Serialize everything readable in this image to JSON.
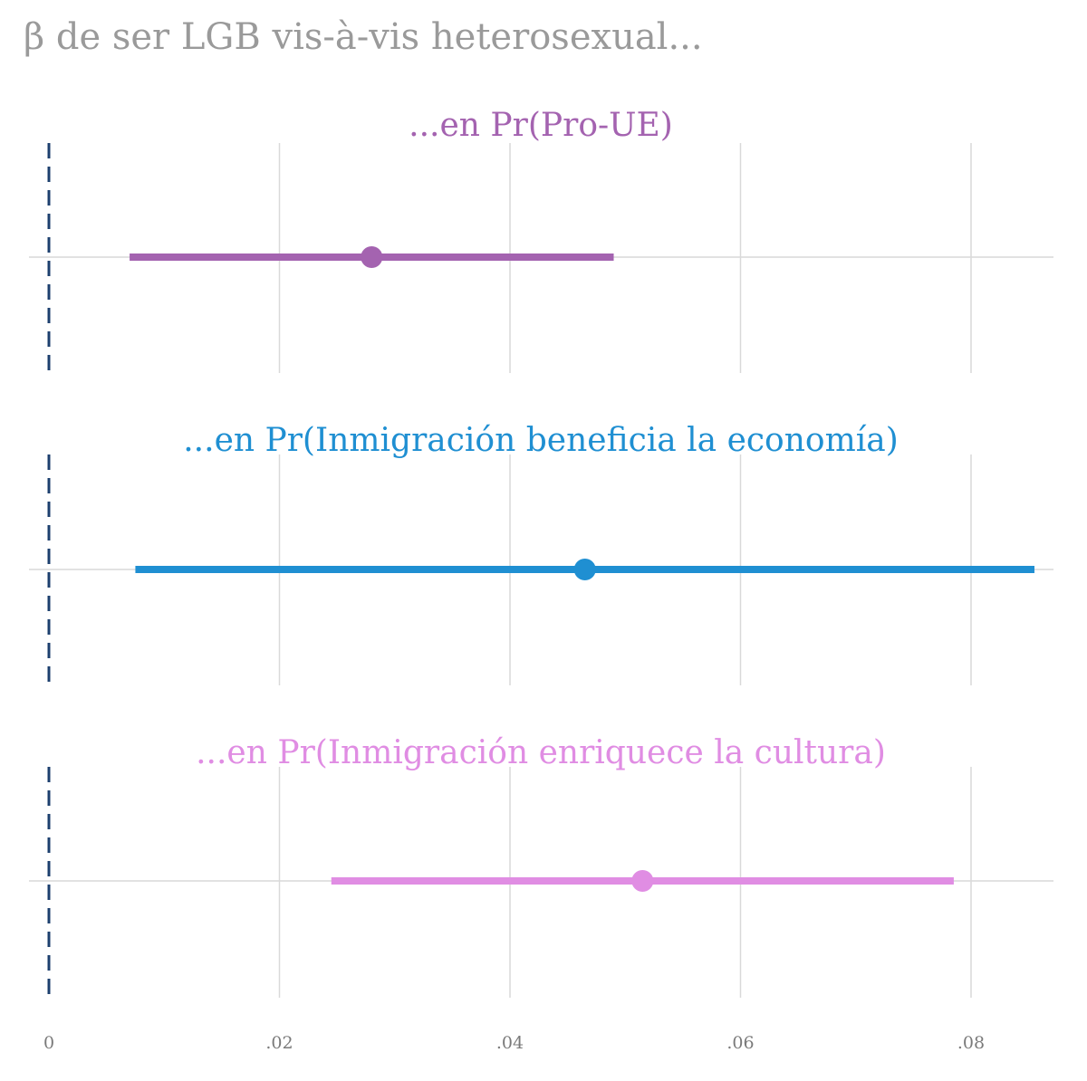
{
  "chart_data": {
    "type": "scatter",
    "subtype": "coefficient-plot-with-confidence-intervals",
    "title": "β de ser LGB vis-à-vis heterosexual...",
    "xlim": [
      0,
      0.087
    ],
    "x_ticks": [
      0,
      0.02,
      0.04,
      0.06,
      0.08
    ],
    "x_tick_labels": [
      "0",
      ".02",
      ".04",
      ".06",
      ".08"
    ],
    "reference_line": {
      "x": 0,
      "style": "dashed",
      "color": "#1c3f6e"
    },
    "grid": true,
    "panels": [
      {
        "title": "...en Pr(Pro-UE)",
        "estimate": 0.028,
        "ci_low": 0.007,
        "ci_high": 0.049,
        "color": "#a463b0"
      },
      {
        "title": "...en Pr(Inmigración beneficia la economía)",
        "estimate": 0.0465,
        "ci_low": 0.0075,
        "ci_high": 0.0855,
        "color": "#1f8fd2"
      },
      {
        "title": "...en Pr(Inmigración enriquece la cultura)",
        "estimate": 0.0515,
        "ci_low": 0.0245,
        "ci_high": 0.0785,
        "color": "#e08de3"
      }
    ]
  }
}
